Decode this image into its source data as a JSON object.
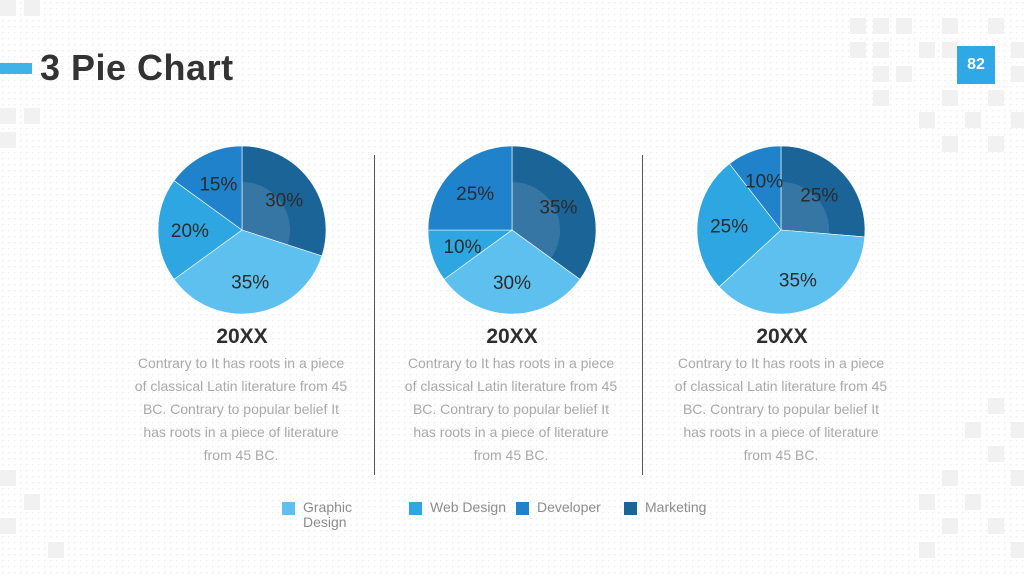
{
  "header": {
    "title": "3 Pie Chart",
    "page_number": "82"
  },
  "colors": {
    "graphic_design": "#5ec0ee",
    "web_design": "#2ea6e2",
    "developer": "#2182cc",
    "marketing": "#1b6498",
    "accent": "#3fb3e8"
  },
  "chart_data": [
    {
      "type": "pie",
      "categories": [
        "Graphic Design",
        "Web Design",
        "Developer",
        "Marketing"
      ],
      "values": [
        35,
        20,
        15,
        30
      ],
      "labels": [
        "35%",
        "20%",
        "15%",
        "30%"
      ]
    },
    {
      "type": "pie",
      "categories": [
        "Graphic Design",
        "Web Design",
        "Developer",
        "Marketing"
      ],
      "values": [
        30,
        10,
        25,
        35
      ],
      "labels": [
        "30%",
        "10%",
        "25%",
        "35%"
      ]
    },
    {
      "type": "pie",
      "categories": [
        "Graphic Design",
        "Web Design",
        "Developer",
        "Marketing"
      ],
      "values": [
        35,
        25,
        10,
        25
      ],
      "labels": [
        "35%",
        "25%",
        "10%",
        "25%"
      ]
    }
  ],
  "columns": [
    {
      "year": "20XX",
      "text": "Contrary to It has roots in a piece of classical Latin literature from 45 BC. Contrary to popular belief It has roots in a piece of literature from 45 BC."
    },
    {
      "year": "20XX",
      "text": "Contrary to It has roots in a piece of classical Latin literature from 45 BC. Contrary to popular belief It has roots in a piece of literature from 45 BC."
    },
    {
      "year": "20XX",
      "text": "Contrary to It has roots in a piece of classical Latin literature from 45 BC. Contrary to popular belief It has roots in a piece of literature from 45 BC."
    }
  ],
  "legend": [
    {
      "label": "Graphic\nDesign",
      "color": "#5ec0ee"
    },
    {
      "label": "Web Design",
      "color": "#2ea6e2"
    },
    {
      "label": "Developer",
      "color": "#2182cc"
    },
    {
      "label": "Marketing",
      "color": "#1b6498"
    }
  ]
}
